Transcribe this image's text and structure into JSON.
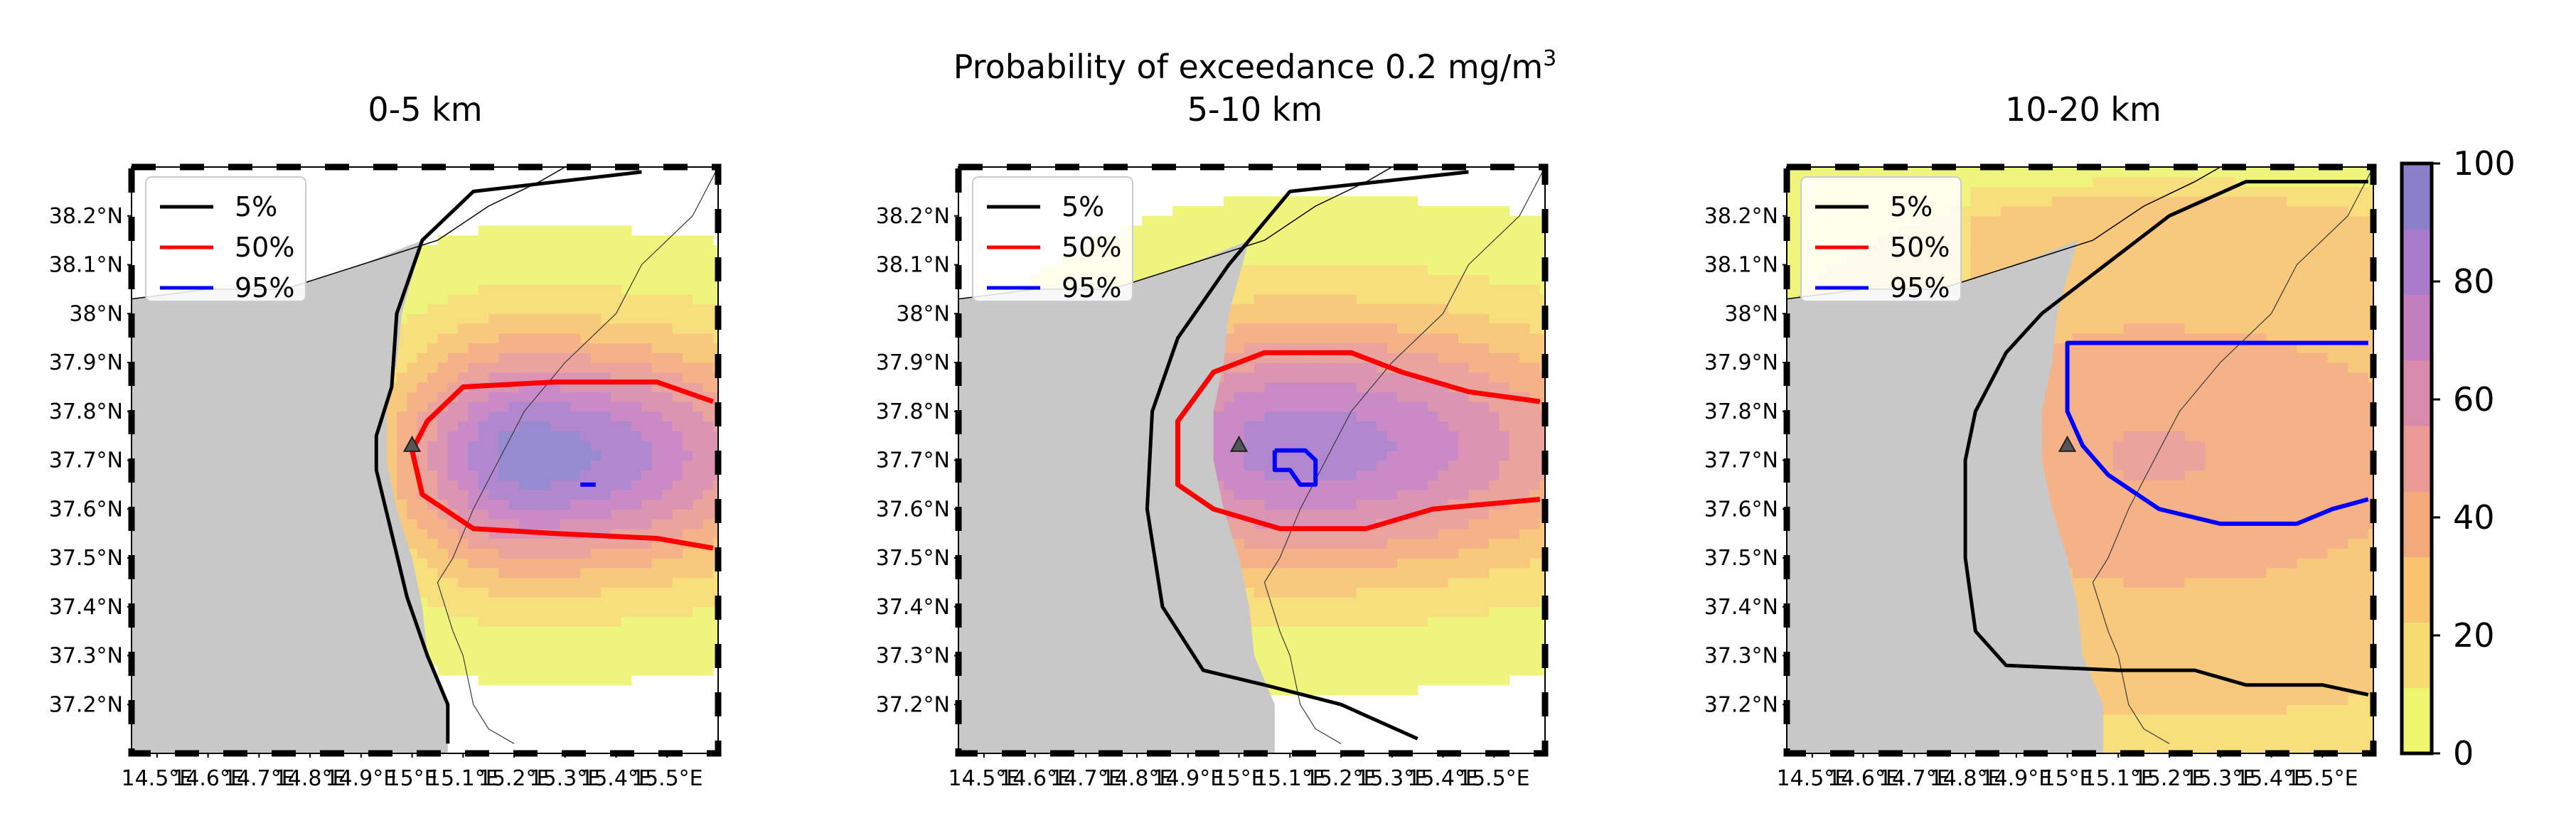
{
  "figure": {
    "suptitle_main": "Probability of exceedance 0.2 mg/m",
    "suptitle_sup": "3"
  },
  "axes": {
    "lat_ticks": [
      "38.2°N",
      "38.1°N",
      "38°N",
      "37.9°N",
      "37.8°N",
      "37.7°N",
      "37.6°N",
      "37.5°N",
      "37.4°N",
      "37.3°N",
      "37.2°N"
    ],
    "lon_ticks": [
      "14.5°E",
      "14.6°E",
      "14.7°E",
      "14.8°E",
      "14.9°E",
      "15°E",
      "15.1°E",
      "15.2°E",
      "15.3°E",
      "15.4°E",
      "15.5°E"
    ],
    "extent": {
      "lon_min": 14.45,
      "lon_max": 15.6,
      "lat_min": 37.1,
      "lat_max": 38.3
    }
  },
  "legend": [
    {
      "label": "5%",
      "color": "#000000"
    },
    {
      "label": "50%",
      "color": "#ff0000"
    },
    {
      "label": "95%",
      "color": "#0000ff"
    }
  ],
  "colorbar": {
    "ticks": [
      "100",
      "80",
      "60",
      "40",
      "20",
      "0"
    ],
    "min": 0,
    "max": 100,
    "colors": [
      "#eef56e",
      "#f6dc6e",
      "#f8c46e",
      "#f4a97c",
      "#e99a94",
      "#d88aab",
      "#c47ec0",
      "#a97ccb",
      "#8b7fcb"
    ]
  },
  "colors": {
    "land": "#c8c8c8",
    "background": "#ffffff",
    "volcano": "#555555"
  },
  "volcano": {
    "lon": 15.0,
    "lat": 37.73
  },
  "panels": [
    {
      "title": "0-5 km",
      "contours": {
        "5": [
          [
            15.45,
            38.29
          ],
          [
            15.12,
            38.25
          ],
          [
            15.02,
            38.15
          ],
          [
            14.97,
            38.0
          ],
          [
            14.96,
            37.85
          ],
          [
            14.93,
            37.75
          ],
          [
            14.93,
            37.68
          ],
          [
            14.96,
            37.55
          ],
          [
            14.99,
            37.42
          ],
          [
            15.03,
            37.3
          ],
          [
            15.07,
            37.2
          ],
          [
            15.07,
            37.12
          ]
        ],
        "50": [
          [
            15.59,
            37.82
          ],
          [
            15.48,
            37.86
          ],
          [
            15.28,
            37.86
          ],
          [
            15.1,
            37.85
          ],
          [
            15.03,
            37.78
          ],
          [
            15.0,
            37.72
          ],
          [
            15.02,
            37.63
          ],
          [
            15.12,
            37.56
          ],
          [
            15.28,
            37.55
          ],
          [
            15.48,
            37.54
          ],
          [
            15.59,
            37.52
          ]
        ],
        "95": [
          [
            15.33,
            37.65
          ],
          [
            15.36,
            37.65
          ]
        ]
      },
      "field": {
        "center_lon": 15.22,
        "center_lat": 37.7,
        "peak": 95,
        "decay_lon": 0.22,
        "decay_lat": 0.2,
        "east_bias": 1
      }
    },
    {
      "title": "5-10 km",
      "contours": {
        "5": [
          [
            15.45,
            38.29
          ],
          [
            15.1,
            38.25
          ],
          [
            14.98,
            38.1
          ],
          [
            14.88,
            37.95
          ],
          [
            14.83,
            37.8
          ],
          [
            14.82,
            37.6
          ],
          [
            14.85,
            37.4
          ],
          [
            14.93,
            37.27
          ],
          [
            15.05,
            37.24
          ],
          [
            15.2,
            37.2
          ],
          [
            15.35,
            37.13
          ]
        ],
        "50": [
          [
            15.59,
            37.82
          ],
          [
            15.45,
            37.84
          ],
          [
            15.32,
            37.88
          ],
          [
            15.22,
            37.92
          ],
          [
            15.05,
            37.92
          ],
          [
            14.95,
            37.88
          ],
          [
            14.88,
            37.78
          ],
          [
            14.88,
            37.65
          ],
          [
            14.95,
            37.6
          ],
          [
            15.08,
            37.56
          ],
          [
            15.25,
            37.56
          ],
          [
            15.38,
            37.6
          ],
          [
            15.59,
            37.62
          ]
        ],
        "95": [
          [
            15.07,
            37.72
          ],
          [
            15.13,
            37.72
          ],
          [
            15.15,
            37.7
          ],
          [
            15.15,
            37.65
          ],
          [
            15.12,
            37.65
          ],
          [
            15.1,
            37.68
          ],
          [
            15.07,
            37.68
          ],
          [
            15.07,
            37.72
          ]
        ]
      },
      "field": {
        "center_lon": 15.1,
        "center_lat": 37.72,
        "peak": 85,
        "decay_lon": 0.3,
        "decay_lat": 0.22,
        "east_bias": 0.8
      }
    },
    {
      "title": "10-20 km",
      "contours": {
        "5": [
          [
            15.59,
            38.27
          ],
          [
            15.35,
            38.27
          ],
          [
            15.2,
            38.2
          ],
          [
            15.05,
            38.08
          ],
          [
            14.95,
            38.0
          ],
          [
            14.88,
            37.92
          ],
          [
            14.82,
            37.8
          ],
          [
            14.8,
            37.7
          ],
          [
            14.8,
            37.5
          ],
          [
            14.82,
            37.35
          ],
          [
            14.88,
            37.28
          ],
          [
            15.1,
            37.27
          ],
          [
            15.25,
            37.27
          ],
          [
            15.35,
            37.24
          ],
          [
            15.5,
            37.24
          ],
          [
            15.59,
            37.22
          ]
        ],
        "50": [],
        "95": [
          [
            15.59,
            37.94
          ],
          [
            15.0,
            37.94
          ],
          [
            15.0,
            37.8
          ],
          [
            15.03,
            37.73
          ],
          [
            15.08,
            37.67
          ],
          [
            15.18,
            37.6
          ],
          [
            15.3,
            37.57
          ],
          [
            15.45,
            37.57
          ],
          [
            15.52,
            37.6
          ],
          [
            15.59,
            37.62
          ]
        ]
      },
      "field": {
        "center_lon": 15.15,
        "center_lat": 37.7,
        "peak": 45,
        "decay_lon": 0.6,
        "decay_lat": 0.4,
        "east_bias": 0.4
      }
    }
  ]
}
